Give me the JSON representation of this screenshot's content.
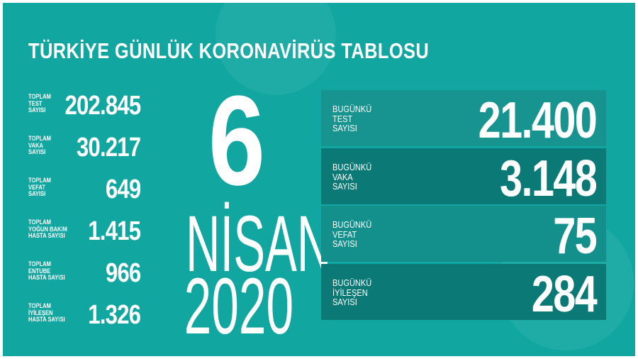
{
  "title": "TÜRKİYE GÜNLÜK KORONAVİRÜS TABLOSU",
  "colors": {
    "background": "#12a6a1",
    "panel_light": "#179490",
    "panel_dark": "#0b7a76",
    "text": "#ffffff"
  },
  "date": {
    "day": "6",
    "month": "NİSAN",
    "year": "2020"
  },
  "totals": [
    {
      "label": "TOPLAM\nTEST\nSAYISI",
      "value": "202.845"
    },
    {
      "label": "TOPLAM\nVAKA\nSAYISI",
      "value": "30.217"
    },
    {
      "label": "TOPLAM\nVEFAT\nSAYISI",
      "value": "649"
    },
    {
      "label": "TOPLAM\nYOĞUN BAKIM\nHASTA SAYISI",
      "value": "1.415"
    },
    {
      "label": "TOPLAM\nENTUBE\nHASTA SAYISI",
      "value": "966"
    },
    {
      "label": "TOPLAM\nİYİLEŞEN\nHASTA SAYISI",
      "value": "1.326"
    }
  ],
  "daily": [
    {
      "label": "BUGÜNKÜ\nTEST\nSAYISI",
      "value": "21.400"
    },
    {
      "label": "BUGÜNKÜ\nVAKA\nSAYISI",
      "value": "3.148"
    },
    {
      "label": "BUGÜNKÜ\nVEFAT\nSAYISI",
      "value": "75"
    },
    {
      "label": "BUGÜNKÜ\nİYİLEŞEN\nSAYISI",
      "value": "284"
    }
  ]
}
